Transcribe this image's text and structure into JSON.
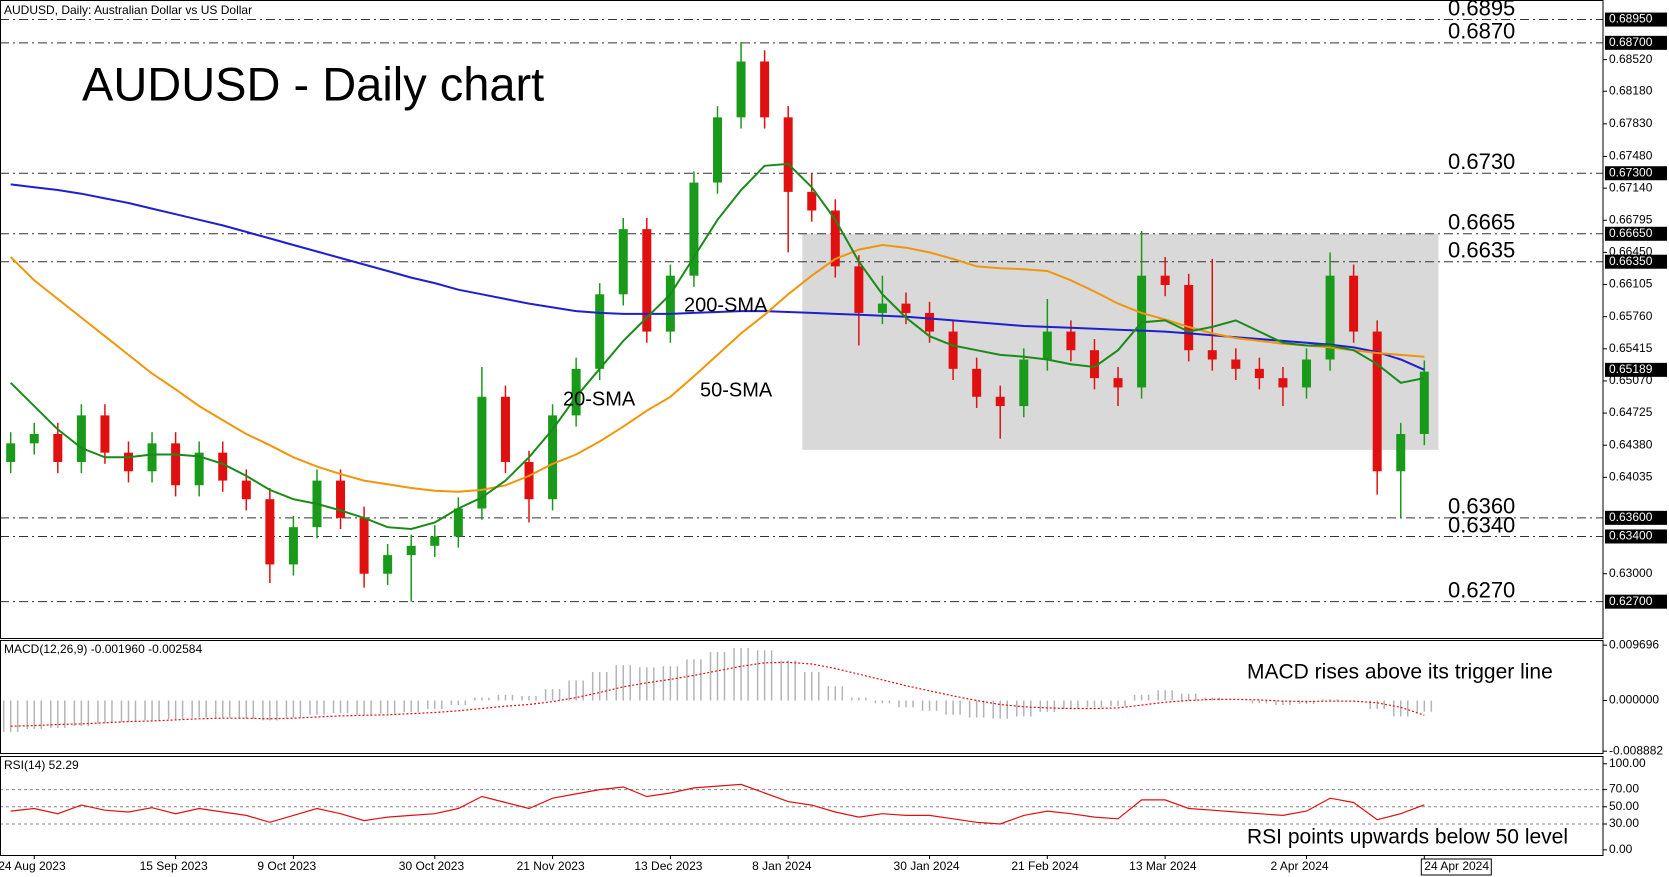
{
  "chart_data": [
    {
      "type": "candlestick",
      "header": "AUDUSD, Daily:  Australian Dollar vs US Dollar",
      "title": "AUDUSD - Daily chart",
      "categories": [
        null,
        "24 Aug 2023",
        null,
        null,
        null,
        null,
        null,
        "15 Sep 2023",
        null,
        null,
        null,
        null,
        "9 Oct 2023",
        null,
        null,
        null,
        null,
        null,
        "30 Oct 2023",
        null,
        null,
        null,
        null,
        "21 Nov 2023",
        null,
        null,
        null,
        null,
        "13 Dec 2023",
        null,
        null,
        null,
        null,
        "8 Jan 2024",
        null,
        null,
        null,
        null,
        null,
        "30 Jan 2024",
        null,
        null,
        null,
        null,
        "21 Feb 2024",
        null,
        null,
        null,
        null,
        "13 Mar 2024",
        null,
        null,
        null,
        null,
        null,
        "2 Apr 2024",
        null,
        null,
        null,
        null,
        "24 Apr 2024"
      ],
      "open": [
        0.642,
        0.644,
        0.645,
        0.642,
        0.647,
        0.643,
        0.641,
        0.644,
        0.6395,
        0.643,
        0.64,
        0.638,
        0.631,
        0.635,
        0.64,
        0.636,
        0.63,
        0.632,
        0.633,
        0.634,
        0.637,
        0.649,
        0.642,
        0.638,
        0.647,
        0.652,
        0.66,
        0.667,
        0.656,
        0.662,
        0.672,
        0.679,
        0.685,
        0.679,
        0.671,
        0.669,
        0.663,
        0.658,
        0.659,
        0.658,
        0.656,
        0.652,
        0.649,
        0.648,
        0.653,
        0.656,
        0.654,
        0.651,
        0.65,
        0.662,
        0.661,
        0.654,
        0.653,
        0.652,
        0.651,
        0.65,
        0.653,
        0.662,
        0.656,
        0.641,
        0.645
      ],
      "high": [
        0.6452,
        0.6462,
        0.6462,
        0.6482,
        0.6482,
        0.6442,
        0.6452,
        0.6452,
        0.6442,
        0.6442,
        0.6412,
        0.6392,
        0.6362,
        0.6412,
        0.6412,
        0.6372,
        0.6332,
        0.6342,
        0.6352,
        0.6382,
        0.6522,
        0.6502,
        0.6432,
        0.6482,
        0.6532,
        0.6612,
        0.6682,
        0.6682,
        0.6632,
        0.6732,
        0.6802,
        0.6871,
        0.6862,
        0.6802,
        0.673,
        0.6702,
        0.6642,
        0.662,
        0.6602,
        0.6592,
        0.6572,
        0.6532,
        0.6502,
        0.6542,
        0.6595,
        0.6572,
        0.6552,
        0.6522,
        0.6668,
        0.664,
        0.6622,
        0.6638,
        0.6542,
        0.6532,
        0.6522,
        0.6542,
        0.6645,
        0.6632,
        0.6572,
        0.6462,
        0.6529
      ],
      "low": [
        0.6408,
        0.6428,
        0.6408,
        0.6408,
        0.6418,
        0.6398,
        0.6398,
        0.6383,
        0.6383,
        0.6388,
        0.6368,
        0.629,
        0.6298,
        0.6338,
        0.6348,
        0.6285,
        0.6288,
        0.627,
        0.6318,
        0.6328,
        0.6358,
        0.6408,
        0.6355,
        0.6368,
        0.6458,
        0.6508,
        0.6588,
        0.6548,
        0.6548,
        0.6608,
        0.6708,
        0.6778,
        0.6778,
        0.6645,
        0.6678,
        0.6618,
        0.6545,
        0.6568,
        0.6568,
        0.6548,
        0.6508,
        0.6478,
        0.6445,
        0.6468,
        0.6518,
        0.6528,
        0.6498,
        0.648,
        0.6488,
        0.6598,
        0.6528,
        0.6518,
        0.6508,
        0.6498,
        0.648,
        0.6488,
        0.6518,
        0.6548,
        0.6385,
        0.636,
        0.6438
      ],
      "close": [
        0.644,
        0.645,
        0.642,
        0.647,
        0.643,
        0.641,
        0.644,
        0.6395,
        0.643,
        0.64,
        0.638,
        0.631,
        0.635,
        0.64,
        0.636,
        0.63,
        0.632,
        0.633,
        0.634,
        0.637,
        0.649,
        0.642,
        0.638,
        0.647,
        0.652,
        0.66,
        0.667,
        0.656,
        0.662,
        0.672,
        0.679,
        0.685,
        0.679,
        0.671,
        0.669,
        0.663,
        0.658,
        0.659,
        0.658,
        0.656,
        0.652,
        0.649,
        0.648,
        0.653,
        0.656,
        0.654,
        0.651,
        0.65,
        0.662,
        0.661,
        0.654,
        0.653,
        0.652,
        0.651,
        0.65,
        0.653,
        0.662,
        0.656,
        0.641,
        0.645,
        0.6517
      ],
      "up_color": "#1a9a1a",
      "down_color": "#e01010",
      "series": [
        {
          "name": "200-SMA",
          "color": "#1f1fd0",
          "values": [
            0.6718,
            0.6715,
            0.6712,
            0.6708,
            0.6703,
            0.6698,
            0.6692,
            0.6686,
            0.668,
            0.6674,
            0.6667,
            0.666,
            0.6653,
            0.6646,
            0.6639,
            0.6632,
            0.6625,
            0.6618,
            0.6612,
            0.6605,
            0.66,
            0.6595,
            0.659,
            0.6586,
            0.6582,
            0.658,
            0.6579,
            0.6579,
            0.6579,
            0.658,
            0.6581,
            0.6582,
            0.6582,
            0.6581,
            0.658,
            0.6579,
            0.6578,
            0.6577,
            0.6576,
            0.6574,
            0.6572,
            0.657,
            0.6568,
            0.6566,
            0.6565,
            0.6564,
            0.6563,
            0.6562,
            0.6561,
            0.656,
            0.6558,
            0.6556,
            0.6554,
            0.6552,
            0.655,
            0.6548,
            0.6546,
            0.6543,
            0.6538,
            0.653,
            0.6519
          ]
        },
        {
          "name": "50-SMA",
          "color": "#f0960a",
          "values": [
            0.664,
            0.6615,
            0.6595,
            0.6575,
            0.6555,
            0.6535,
            0.6515,
            0.6498,
            0.648,
            0.6465,
            0.645,
            0.6438,
            0.6425,
            0.6415,
            0.6407,
            0.64,
            0.6396,
            0.6392,
            0.6389,
            0.6388,
            0.639,
            0.6395,
            0.6405,
            0.6418,
            0.6428,
            0.6442,
            0.6458,
            0.6475,
            0.649,
            0.6512,
            0.6535,
            0.6558,
            0.6578,
            0.66,
            0.662,
            0.6638,
            0.6648,
            0.6653,
            0.665,
            0.6645,
            0.6638,
            0.663,
            0.6628,
            0.6627,
            0.6625,
            0.6615,
            0.6603,
            0.659,
            0.658,
            0.6573,
            0.6565,
            0.6558,
            0.6553,
            0.655,
            0.6547,
            0.6545,
            0.6543,
            0.654,
            0.6537,
            0.6535,
            0.6533
          ]
        },
        {
          "name": "20-SMA",
          "color": "#1a8a1a",
          "values": [
            0.6505,
            0.648,
            0.6455,
            0.6435,
            0.6425,
            0.6425,
            0.6428,
            0.6428,
            0.6426,
            0.6418,
            0.6405,
            0.639,
            0.638,
            0.6375,
            0.6368,
            0.636,
            0.635,
            0.6348,
            0.6355,
            0.637,
            0.6382,
            0.64,
            0.6425,
            0.6455,
            0.649,
            0.652,
            0.655,
            0.6575,
            0.66,
            0.664,
            0.668,
            0.6712,
            0.6738,
            0.674,
            0.6715,
            0.668,
            0.6635,
            0.66,
            0.6575,
            0.6555,
            0.6545,
            0.654,
            0.6535,
            0.6533,
            0.653,
            0.6525,
            0.6522,
            0.654,
            0.657,
            0.6572,
            0.656,
            0.6565,
            0.6572,
            0.656,
            0.6548,
            0.6545,
            0.6545,
            0.654,
            0.6525,
            0.6505,
            0.651
          ]
        }
      ],
      "ylim": [
        0.6231,
        0.6916
      ],
      "yticks": [
        {
          "value": 0.6852,
          "label": "0.68520"
        },
        {
          "value": 0.6818,
          "label": "0.68180"
        },
        {
          "value": 0.6783,
          "label": "0.67830"
        },
        {
          "value": 0.6748,
          "label": "0.67480"
        },
        {
          "value": 0.6714,
          "label": "0.67140"
        },
        {
          "value": 0.66795,
          "label": "0.66795"
        },
        {
          "value": 0.6645,
          "label": "0.66450"
        },
        {
          "value": 0.66105,
          "label": "0.66105"
        },
        {
          "value": 0.6576,
          "label": "0.65760"
        },
        {
          "value": 0.65415,
          "label": "0.65415"
        },
        {
          "value": 0.6507,
          "label": "0.65070"
        },
        {
          "value": 0.64725,
          "label": "0.64725"
        },
        {
          "value": 0.6438,
          "label": "0.64380"
        },
        {
          "value": 0.64035,
          "label": "0.64035"
        },
        {
          "value": 0.63,
          "label": "0.63000"
        }
      ],
      "marked_prices": [
        {
          "value": 0.6895,
          "label": "0.68950"
        },
        {
          "value": 0.687,
          "label": "0.68700"
        },
        {
          "value": 0.673,
          "label": "0.67300"
        },
        {
          "value": 0.6665,
          "label": "0.66650"
        },
        {
          "value": 0.6635,
          "label": "0.66350"
        },
        {
          "value": 0.65189,
          "label": "0.65189"
        },
        {
          "value": 0.636,
          "label": "0.63600"
        },
        {
          "value": 0.634,
          "label": "0.63400"
        },
        {
          "value": 0.627,
          "label": "0.62700"
        }
      ],
      "levels": [
        {
          "value": 0.6895,
          "label": "0.6895",
          "color": "#e00000"
        },
        {
          "value": 0.687,
          "label": "0.6870",
          "color": "#e00000"
        },
        {
          "value": 0.673,
          "label": "0.6730",
          "color": "#e00000"
        },
        {
          "value": 0.6665,
          "label": "0.6665",
          "color": "#e00000"
        },
        {
          "value": 0.6635,
          "label": "0.6635",
          "color": "#e00000"
        },
        {
          "value": 0.636,
          "label": "0.6360",
          "color": "#1a8a1a"
        },
        {
          "value": 0.634,
          "label": "0.6340",
          "color": "#1a8a1a"
        },
        {
          "value": 0.627,
          "label": "0.6270",
          "color": "#1a8a1a"
        }
      ],
      "range_box": {
        "ylim": [
          0.6433,
          0.6665
        ],
        "color": "#d9d9d9"
      }
    },
    {
      "type": "macd",
      "label": "MACD(12,26,9) -0.001960 -0.002584",
      "annotation": "MACD rises above its trigger line",
      "series": [
        {
          "color": "#b4b4b4",
          "values": [
            -0.0055,
            -0.005,
            -0.0048,
            -0.0045,
            -0.004,
            -0.0038,
            -0.0035,
            -0.0033,
            -0.003,
            -0.003,
            -0.0032,
            -0.0035,
            -0.003,
            -0.0025,
            -0.0022,
            -0.0025,
            -0.0023,
            -0.002,
            -0.0015,
            -0.0008,
            0.0005,
            0.001,
            0.0008,
            0.002,
            0.0035,
            0.005,
            0.0062,
            0.0058,
            0.006,
            0.0072,
            0.0085,
            0.0092,
            0.0088,
            0.007,
            0.005,
            0.0025,
            0.0005,
            -0.0005,
            -0.0012,
            -0.0018,
            -0.0025,
            -0.003,
            -0.0032,
            -0.0028,
            -0.002,
            -0.0015,
            -0.0012,
            -0.001,
            0.001,
            0.0018,
            0.0012,
            0.0005,
            0,
            -0.0005,
            -0.0008,
            -0.0006,
            0.0002,
            0,
            -0.0015,
            -0.0028,
            -0.00196
          ]
        },
        {
          "color": "#e01010",
          "values": [
            -0.0045,
            -0.0044,
            -0.0042,
            -0.0041,
            -0.0039,
            -0.0037,
            -0.0036,
            -0.0034,
            -0.0032,
            -0.0031,
            -0.0031,
            -0.0032,
            -0.0031,
            -0.0029,
            -0.0027,
            -0.0026,
            -0.0025,
            -0.0023,
            -0.0021,
            -0.0018,
            -0.0014,
            -0.001,
            -0.0007,
            -0.0002,
            0.0005,
            0.0014,
            0.0024,
            0.0031,
            0.0037,
            0.0044,
            0.0052,
            0.006,
            0.0066,
            0.0067,
            0.0064,
            0.0056,
            0.0046,
            0.0036,
            0.0026,
            0.0017,
            0.0008,
            0,
            -0.0007,
            -0.0011,
            -0.0013,
            -0.0014,
            -0.0014,
            -0.0013,
            -0.0008,
            -0.0003,
            0,
            0.0002,
            0.0002,
            0.0001,
            -0.0001,
            -0.0002,
            -0.0001,
            -0.0001,
            -0.0004,
            -0.0012,
            -0.002584
          ]
        }
      ],
      "ylim": [
        -0.0092,
        0.0106
      ],
      "yticks": [
        0.009696,
        {
          "value": 0,
          "label": "0.000000"
        },
        -0.008882
      ]
    },
    {
      "type": "line",
      "label": "RSI(14) 52.29",
      "annotation": "RSI points upwards below 50 level",
      "series": [
        {
          "color": "#e01010",
          "values": [
            45,
            48,
            42,
            52,
            46,
            44,
            49,
            42,
            48,
            44,
            40,
            32,
            40,
            48,
            42,
            34,
            38,
            40,
            42,
            48,
            62,
            55,
            48,
            60,
            65,
            70,
            73,
            62,
            66,
            72,
            74,
            76,
            66,
            56,
            52,
            44,
            38,
            42,
            40,
            40,
            36,
            32,
            30,
            40,
            45,
            42,
            38,
            36,
            58,
            58,
            48,
            46,
            44,
            42,
            40,
            45,
            60,
            55,
            35,
            42,
            52.29
          ]
        }
      ],
      "ylim": [
        -6,
        109
      ],
      "yticks": [
        {
          "value": 100,
          "label": "100.00"
        },
        {
          "value": 70,
          "label": "70.00"
        },
        {
          "value": 50,
          "label": "50.00"
        },
        {
          "value": 30,
          "label": "30.00"
        },
        {
          "value": 0,
          "label": "0.00"
        }
      ]
    }
  ]
}
